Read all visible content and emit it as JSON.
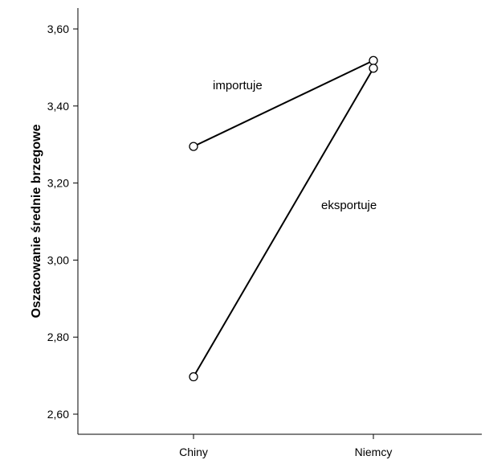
{
  "chart_data": {
    "type": "line",
    "title": "",
    "xlabel": "",
    "ylabel": "Oszacowanie średnie brzegowe",
    "categories": [
      "Chiny",
      "Niemcy"
    ],
    "ylim": [
      2.55,
      3.65
    ],
    "yticks": [
      "2,60",
      "2,80",
      "3,00",
      "3,20",
      "3,40",
      "3,60"
    ],
    "series": [
      {
        "name": "importuje",
        "values": [
          3.295,
          3.518
        ]
      },
      {
        "name": "eksportuje",
        "values": [
          2.697,
          3.498
        ]
      }
    ],
    "annotations": [
      "importuje",
      "eksportuje"
    ],
    "grid": false
  }
}
